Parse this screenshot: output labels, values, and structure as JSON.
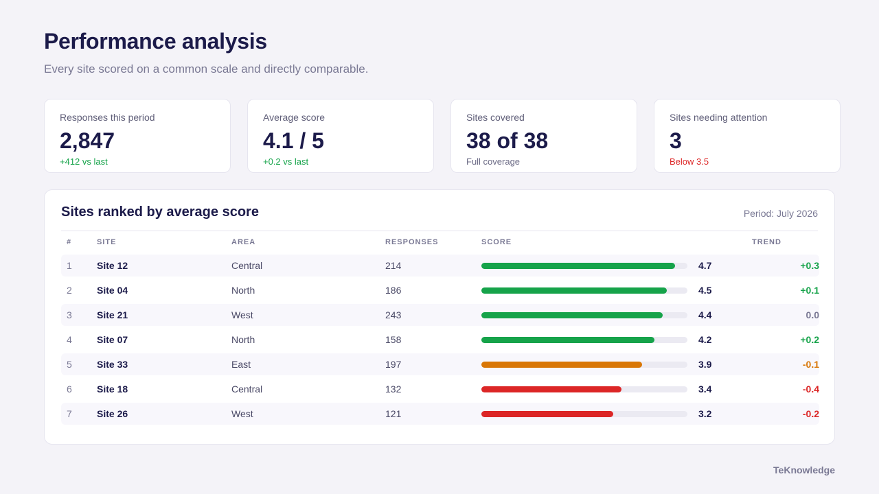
{
  "header": {
    "title": "Performance analysis",
    "subtitle": "Every site scored on a common scale and directly comparable."
  },
  "kpis": [
    {
      "label": "Responses this period",
      "value": "2,847",
      "note": "+412 vs last",
      "note_color": "#16a34a"
    },
    {
      "label": "Average score",
      "value": "4.1 / 5",
      "note": "+0.2 vs last",
      "note_color": "#16a34a"
    },
    {
      "label": "Sites covered",
      "value": "38 of 38",
      "note": "Full coverage",
      "note_color": "#6b6a85"
    },
    {
      "label": "Sites needing attention",
      "value": "3",
      "note": "Below 3.5",
      "note_color": "#dc2626"
    }
  ],
  "table": {
    "title": "Sites ranked by average score",
    "period": "Period: July 2026",
    "columns": {
      "rank": "#",
      "site": "SITE",
      "area": "AREA",
      "responses": "RESPONSES",
      "score": "SCORE",
      "trend": "TREND"
    },
    "score_max": 5,
    "rows": [
      {
        "rank": "1",
        "site": "Site 12",
        "area": "Central",
        "responses": "214",
        "score": "4.7",
        "trend": "+0.3",
        "bar_fraction": 0.94,
        "bar_color": "#16a34a",
        "trend_color": "#16a34a"
      },
      {
        "rank": "2",
        "site": "Site 04",
        "area": "North",
        "responses": "186",
        "score": "4.5",
        "trend": "+0.1",
        "bar_fraction": 0.9,
        "bar_color": "#16a34a",
        "trend_color": "#16a34a"
      },
      {
        "rank": "3",
        "site": "Site 21",
        "area": "West",
        "responses": "243",
        "score": "4.4",
        "trend": "0.0",
        "bar_fraction": 0.88,
        "bar_color": "#16a34a",
        "trend_color": "#7a7994"
      },
      {
        "rank": "4",
        "site": "Site 07",
        "area": "North",
        "responses": "158",
        "score": "4.2",
        "trend": "+0.2",
        "bar_fraction": 0.84,
        "bar_color": "#16a34a",
        "trend_color": "#16a34a"
      },
      {
        "rank": "5",
        "site": "Site 33",
        "area": "East",
        "responses": "197",
        "score": "3.9",
        "trend": "-0.1",
        "bar_fraction": 0.78,
        "bar_color": "#d97706",
        "trend_color": "#d97706"
      },
      {
        "rank": "6",
        "site": "Site 18",
        "area": "Central",
        "responses": "132",
        "score": "3.4",
        "trend": "-0.4",
        "bar_fraction": 0.68,
        "bar_color": "#dc2626",
        "trend_color": "#dc2626"
      },
      {
        "rank": "7",
        "site": "Site 26",
        "area": "West",
        "responses": "121",
        "score": "3.2",
        "trend": "-0.2",
        "bar_fraction": 0.64,
        "bar_color": "#dc2626",
        "trend_color": "#dc2626"
      }
    ]
  },
  "footer": {
    "brand": "TeKnowledge"
  }
}
